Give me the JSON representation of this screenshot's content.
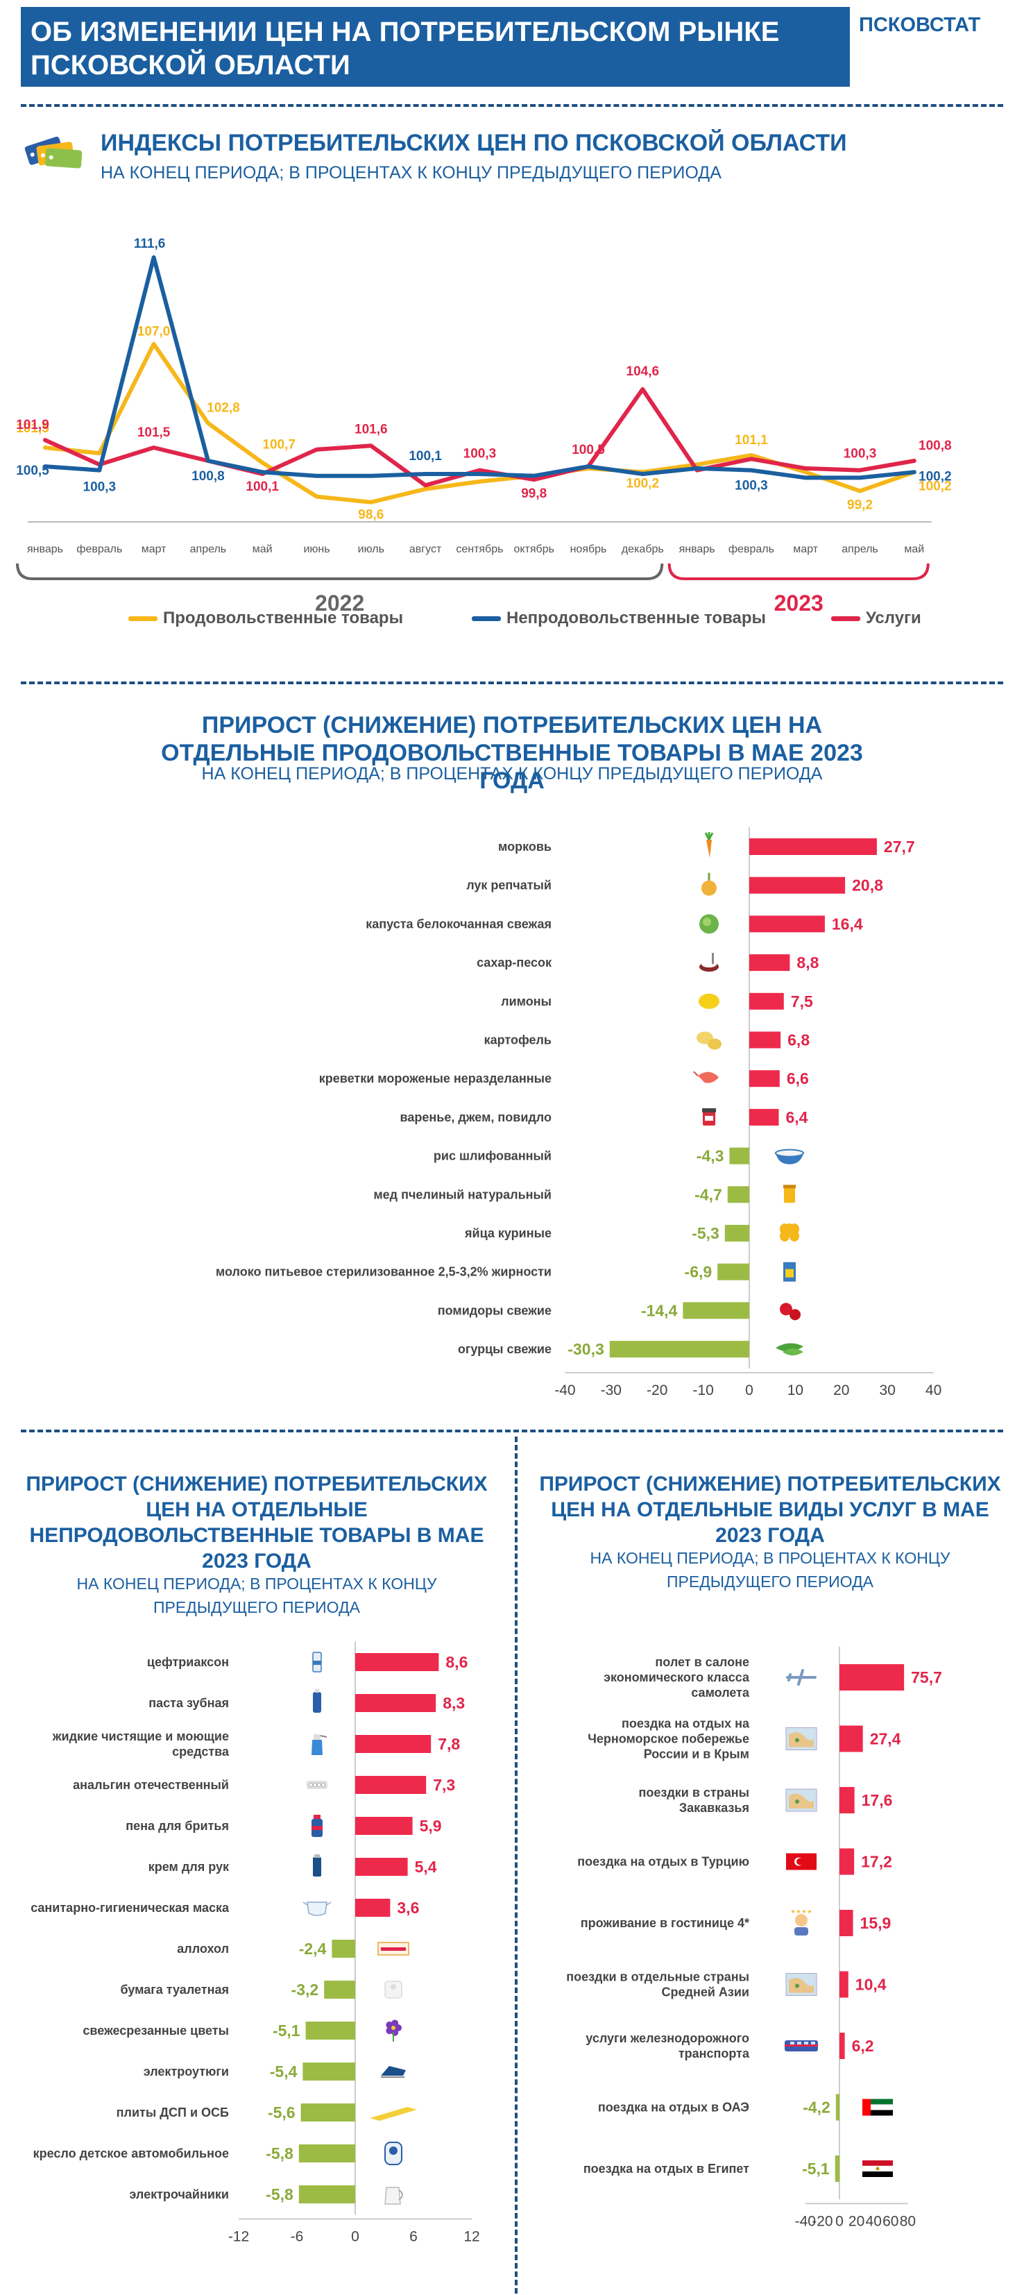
{
  "header": {
    "title": "ОБ ИЗМЕНЕНИИ ЦЕН НА ПОТРЕБИТЕЛЬСКОМ РЫНКЕ ПСКОВСКОЙ ОБЛАСТИ",
    "brand": "ПСКОВСТАТ"
  },
  "colors": {
    "food": "#f5b71a",
    "nonfood": "#1b5fa0",
    "services": "#e0254a",
    "positive_bar": "#ee2a4c",
    "negative_bar": "#9cbb45",
    "title_blue": "#1b5fa0"
  },
  "cpi": {
    "title": "ИНДЕКСЫ ПОТРЕБИТЕЛЬСКИХ ЦЕН ПО ПСКОВСКОЙ ОБЛАСТИ",
    "subtitle": "НА КОНЕЦ ПЕРИОДА; В ПРОЦЕНТАХ К КОНЦУ ПРЕДЫДУЩЕГО ПЕРИОДА",
    "year1": "2022",
    "year2": "2023"
  },
  "food": {
    "title": "ПРИРОСТ (СНИЖЕНИЕ) ПОТРЕБИТЕЛЬСКИХ ЦЕН НА ОТДЕЛЬНЫЕ ПРОДОВОЛЬСТВЕННЫЕ ТОВАРЫ  В МАЕ 2023 ГОДА",
    "subtitle": "НА КОНЕЦ ПЕРИОДА; В ПРОЦЕНТАХ К КОНЦУ ПРЕДЫДУЩЕГО ПЕРИОДА"
  },
  "nonfood": {
    "title": "ПРИРОСТ (СНИЖЕНИЕ) ПОТРЕБИТЕЛЬСКИХ ЦЕН НА ОТДЕЛЬНЫЕ НЕПРОДОВОЛЬСТВЕННЫЕ ТОВАРЫ В МАЕ 2023 ГОДА",
    "subtitle": "НА КОНЕЦ ПЕРИОДА; В ПРОЦЕНТАХ К КОНЦУ ПРЕДЫДУЩЕГО ПЕРИОДА"
  },
  "services": {
    "title": "ПРИРОСТ (СНИЖЕНИЕ) ПОТРЕБИТЕЛЬСКИХ ЦЕН НА ОТДЕЛЬНЫЕ  ВИДЫ УСЛУГ В МАЕ 2023 ГОДА",
    "subtitle": "НА КОНЕЦ ПЕРИОДА; В ПРОЦЕНТАХ К КОНЦУ ПРЕДЫДУЩЕГО ПЕРИОДА"
  },
  "chart_data": [
    {
      "type": "line",
      "categories": [
        "январь",
        "февраль",
        "март",
        "апрель",
        "май",
        "июнь",
        "июль",
        "август",
        "сентябрь",
        "октябрь",
        "ноябрь",
        "декабрь",
        "январь",
        "февраль",
        "март",
        "апрель",
        "май"
      ],
      "series": [
        {
          "name": "Продовольственные товары",
          "color": "#f5b71a",
          "values": [
            101.5,
            101.2,
            107.0,
            102.8,
            100.7,
            98.9,
            98.6,
            99.3,
            99.7,
            100.0,
            100.4,
            100.2,
            100.6,
            101.1,
            100.2,
            99.2,
            100.2
          ],
          "labels": [
            "101,5",
            null,
            "107,0",
            "102,8",
            "100,7",
            null,
            "98,6",
            null,
            null,
            null,
            null,
            "100,2",
            null,
            "101,1",
            null,
            "99,2",
            "100,2"
          ]
        },
        {
          "name": "Непродовольственные товары",
          "color": "#1b5fa0",
          "values": [
            100.5,
            100.3,
            111.6,
            100.8,
            100.2,
            100.0,
            100.0,
            100.1,
            100.1,
            100.0,
            100.5,
            100.1,
            100.4,
            100.3,
            99.9,
            99.9,
            100.2
          ],
          "labels": [
            "100,5",
            "100,3",
            "111,6",
            "100,8",
            null,
            null,
            null,
            "100,1",
            null,
            null,
            null,
            null,
            null,
            "100,3",
            null,
            null,
            "100,2"
          ]
        },
        {
          "name": "Услуги",
          "color": "#e0254a",
          "values": [
            101.9,
            100.6,
            101.5,
            100.8,
            100.1,
            101.4,
            101.6,
            99.5,
            100.3,
            99.8,
            100.5,
            104.6,
            100.3,
            100.9,
            100.4,
            100.3,
            100.8
          ],
          "labels": [
            "101,9",
            null,
            "101,5",
            null,
            "100,1",
            null,
            "101,6",
            null,
            "100,3",
            "99,8",
            "100,5",
            "104,6",
            null,
            null,
            null,
            "100,3",
            "100,8"
          ]
        }
      ],
      "groups": [
        {
          "label": "2022",
          "from": 0,
          "to": 11
        },
        {
          "label": "2023",
          "from": 12,
          "to": 16
        }
      ],
      "legend": "bottom"
    },
    {
      "type": "bar",
      "orientation": "horizontal",
      "categories": [
        "морковь",
        "лук репчатый",
        "капуста белокочанная свежая",
        "сахар-песок",
        "лимоны",
        "картофель",
        "креветки мороженые неразделанные",
        "варенье, джем, повидло",
        "рис шлифованный",
        "мед пчелиный натуральный ",
        "яйца куриные",
        "молоко питьевое  стерилизованное 2,5-3,2% жирности",
        "помидоры свежие",
        "огурцы свежие"
      ],
      "values": [
        27.7,
        20.8,
        16.4,
        8.8,
        7.5,
        6.8,
        6.6,
        6.4,
        -4.3,
        -4.7,
        -5.3,
        -6.9,
        -14.4,
        -30.3
      ],
      "value_labels": [
        "27,7",
        "20,8",
        "16,4",
        "8,8",
        "7,5",
        "6,8",
        "6,6",
        "6,4",
        "-4,3",
        "-4,7",
        "-5,3",
        "-6,9",
        "-14,4",
        "-30,3"
      ],
      "icons": [
        "carrot-icon",
        "onion-icon",
        "cabbage-icon",
        "sugar-icon",
        "lemon-icon",
        "potato-icon",
        "shrimp-icon",
        "jam-icon",
        "rice-icon",
        "honey-icon",
        "eggs-icon",
        "milk-icon",
        "tomato-icon",
        "cucumber-icon"
      ],
      "xlim": [
        -40,
        40
      ],
      "ticks": [
        "-40",
        "-30",
        "-20",
        "-10",
        "0",
        "10",
        "20",
        "30",
        "40"
      ]
    },
    {
      "type": "bar",
      "orientation": "horizontal",
      "categories": [
        "цефтриаксон",
        "паста зубная",
        "жидкие чистящие и моющие средства",
        "анальгин отечественный",
        "пена для бритья",
        "крем для рук",
        "санитарно-гигиеническая маска",
        "аллохол",
        "бумага туалетная",
        "свежесрезанные цветы",
        "электроутюги",
        "плиты ДСП и ОСБ",
        "кресло детское автомобильное",
        "электрочайники"
      ],
      "values": [
        8.6,
        8.3,
        7.8,
        7.3,
        5.9,
        5.4,
        3.6,
        -2.4,
        -3.2,
        -5.1,
        -5.4,
        -5.6,
        -5.8,
        -5.8
      ],
      "value_labels": [
        "8,6",
        "8,3",
        "7,8",
        "7,3",
        "5,9",
        "5,4",
        "3,6",
        "-2,4",
        "-3,2",
        "-5,1",
        "-5,4",
        "-5,6",
        "-5,8",
        "-5,8"
      ],
      "icons": [
        "vial-icon",
        "toothpaste-icon",
        "spray-bottle-icon",
        "pills-icon",
        "shaving-foam-icon",
        "cream-tube-icon",
        "mask-icon",
        "pill-box-icon",
        "toilet-paper-icon",
        "flower-icon",
        "iron-icon",
        "board-icon",
        "car-seat-icon",
        "kettle-icon"
      ],
      "xlim": [
        -12,
        12
      ],
      "ticks": [
        "-12",
        "-6",
        "0",
        "6",
        "12"
      ]
    },
    {
      "type": "bar",
      "orientation": "horizontal",
      "categories": [
        "полет в салоне экономического класса самолета",
        "поездка на отдых на Черноморское побережье России и в Крым",
        "поездки в страны Закавказья",
        "поездка на отдых в Турцию",
        "проживание в гостинице 4*",
        "поездки в отдельные страны Средней Азии",
        "услуги железнодорожного транспорта",
        "поездка на отдых в ОАЭ",
        "поездка на отдых в Египет"
      ],
      "values": [
        75.7,
        27.4,
        17.6,
        17.2,
        15.9,
        10.4,
        6.2,
        -4.2,
        -5.1
      ],
      "value_labels": [
        "75,7",
        "27,4",
        "17,6",
        "17,2",
        "15,9",
        "10,4",
        "6,2",
        "-4,2",
        "-5,1"
      ],
      "icons": [
        "airplane-icon",
        "map-icon",
        "map-icon",
        "turkey-flag-icon",
        "hotel-icon",
        "map-icon",
        "train-icon",
        "uae-flag-icon",
        "egypt-flag-icon"
      ],
      "xlim": [
        -40,
        80
      ],
      "ticks": [
        "-40",
        "-20",
        "0",
        "20",
        "40",
        "60",
        "80"
      ]
    }
  ]
}
